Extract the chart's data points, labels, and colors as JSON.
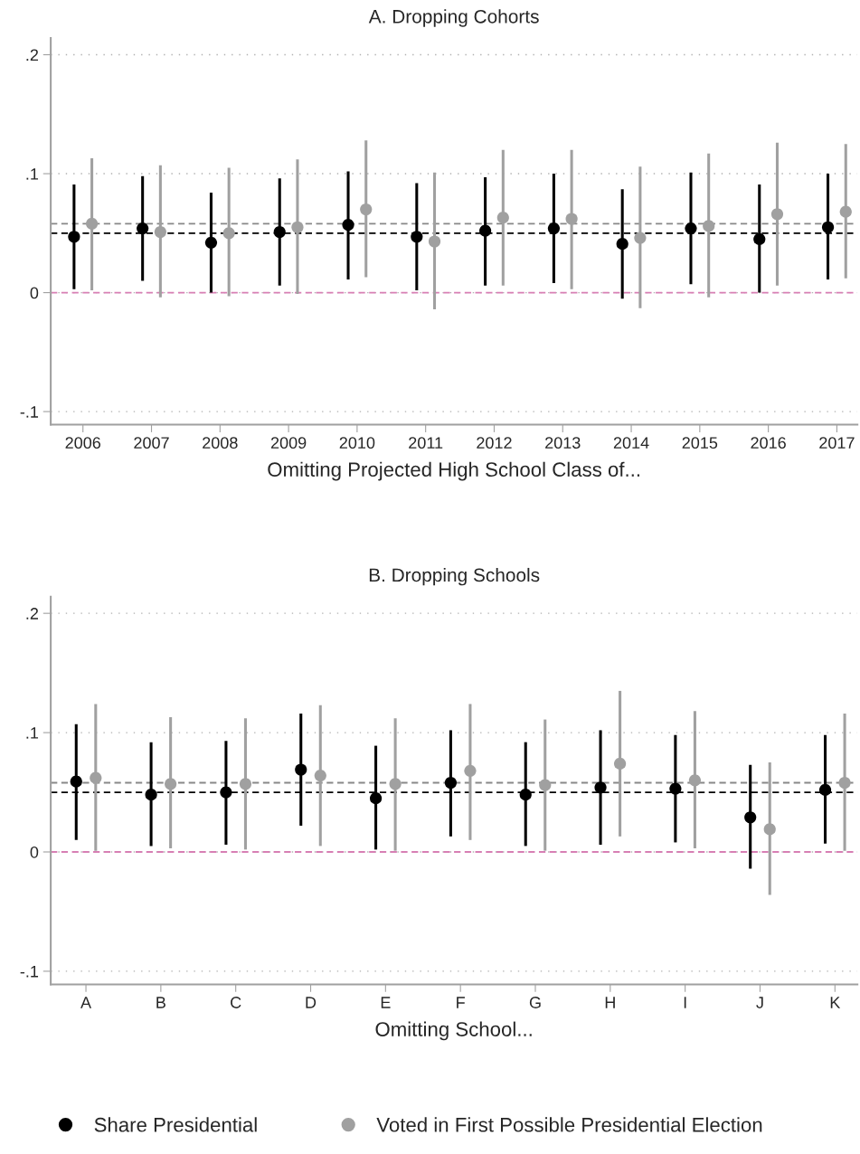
{
  "chart_data": [
    {
      "type": "scatter",
      "title": "A. Dropping Cohorts",
      "xlabel": "Omitting Projected High School Class of...",
      "categories": [
        "2006",
        "2007",
        "2008",
        "2009",
        "2010",
        "2011",
        "2012",
        "2013",
        "2014",
        "2015",
        "2016",
        "2017"
      ],
      "series": [
        {
          "color": "#000000",
          "values": [
            0.047,
            0.054,
            0.042,
            0.051,
            0.057,
            0.047,
            0.052,
            0.054,
            0.041,
            0.054,
            0.045,
            0.055
          ],
          "errors": [
            [
              0.003,
              0.091
            ],
            [
              0.01,
              0.098
            ],
            [
              0.0,
              0.084
            ],
            [
              0.006,
              0.096
            ],
            [
              0.011,
              0.102
            ],
            [
              0.002,
              0.092
            ],
            [
              0.006,
              0.097
            ],
            [
              0.008,
              0.1
            ],
            [
              -0.005,
              0.087
            ],
            [
              0.007,
              0.101
            ],
            [
              0.0,
              0.091
            ],
            [
              0.011,
              0.1
            ]
          ]
        },
        {
          "color": "#a0a0a0",
          "values": [
            0.058,
            0.051,
            0.05,
            0.055,
            0.07,
            0.043,
            0.063,
            0.062,
            0.046,
            0.056,
            0.066,
            0.068
          ],
          "errors": [
            [
              0.002,
              0.113
            ],
            [
              -0.004,
              0.107
            ],
            [
              -0.003,
              0.105
            ],
            [
              -0.001,
              0.112
            ],
            [
              0.013,
              0.128
            ],
            [
              -0.014,
              0.101
            ],
            [
              0.006,
              0.12
            ],
            [
              0.003,
              0.12
            ],
            [
              -0.013,
              0.106
            ],
            [
              -0.004,
              0.117
            ],
            [
              0.006,
              0.126
            ],
            [
              0.012,
              0.125
            ]
          ]
        }
      ],
      "ylim": [
        -0.111,
        0.214
      ],
      "yticks": [
        {
          "value": 0.2,
          "label": ".2"
        },
        {
          "value": 0.1,
          "label": ".1"
        },
        0,
        {
          "value": -0.1,
          "label": "-.1"
        }
      ],
      "grid": "y",
      "marker": "circle",
      "ref_lines": [
        {
          "axis": "y",
          "value": 0.058,
          "color": "#888888",
          "line_style": "dashed"
        },
        {
          "axis": "y",
          "value": 0.05,
          "color": "#000000",
          "line_style": "dashed"
        },
        {
          "axis": "y",
          "value": 0,
          "color": "#d77fb4",
          "line_style": "dashed"
        }
      ]
    },
    {
      "type": "scatter",
      "title": "B. Dropping Schools",
      "xlabel": "Omitting School...",
      "categories": [
        "A",
        "B",
        "C",
        "D",
        "E",
        "F",
        "G",
        "H",
        "I",
        "J",
        "K"
      ],
      "series": [
        {
          "name": "Share Presidential",
          "color": "#000000",
          "values": [
            0.059,
            0.048,
            0.05,
            0.069,
            0.045,
            0.058,
            0.048,
            0.054,
            0.053,
            0.029,
            0.052
          ],
          "errors": [
            [
              0.01,
              0.107
            ],
            [
              0.005,
              0.092
            ],
            [
              0.006,
              0.093
            ],
            [
              0.022,
              0.116
            ],
            [
              0.002,
              0.089
            ],
            [
              0.013,
              0.102
            ],
            [
              0.005,
              0.092
            ],
            [
              0.006,
              0.102
            ],
            [
              0.008,
              0.098
            ],
            [
              -0.014,
              0.073
            ],
            [
              0.007,
              0.098
            ]
          ]
        },
        {
          "name": "Voted in First Possible Presidential Election",
          "color": "#a0a0a0",
          "values": [
            0.062,
            0.057,
            0.057,
            0.064,
            0.057,
            0.068,
            0.056,
            0.074,
            0.06,
            0.019,
            0.058
          ],
          "errors": [
            [
              0.001,
              0.124
            ],
            [
              0.003,
              0.113
            ],
            [
              0.002,
              0.112
            ],
            [
              0.005,
              0.123
            ],
            [
              0.001,
              0.112
            ],
            [
              0.01,
              0.124
            ],
            [
              0.001,
              0.111
            ],
            [
              0.013,
              0.135
            ],
            [
              0.003,
              0.118
            ],
            [
              -0.036,
              0.075
            ],
            [
              0.001,
              0.116
            ]
          ]
        }
      ],
      "ylim": [
        -0.111,
        0.214
      ],
      "yticks": [
        {
          "value": 0.2,
          "label": ".2"
        },
        {
          "value": 0.1,
          "label": ".1"
        },
        0,
        {
          "value": -0.1,
          "label": "-.1"
        }
      ],
      "grid": "y",
      "marker": "circle",
      "legend": "bottom",
      "ref_lines": [
        {
          "axis": "y",
          "value": 0.058,
          "color": "#888888",
          "line_style": "dashed"
        },
        {
          "axis": "y",
          "value": 0.05,
          "color": "#000000",
          "line_style": "dashed"
        },
        {
          "axis": "y",
          "value": 0,
          "color": "#d77fb4",
          "line_style": "dashed"
        }
      ]
    }
  ]
}
